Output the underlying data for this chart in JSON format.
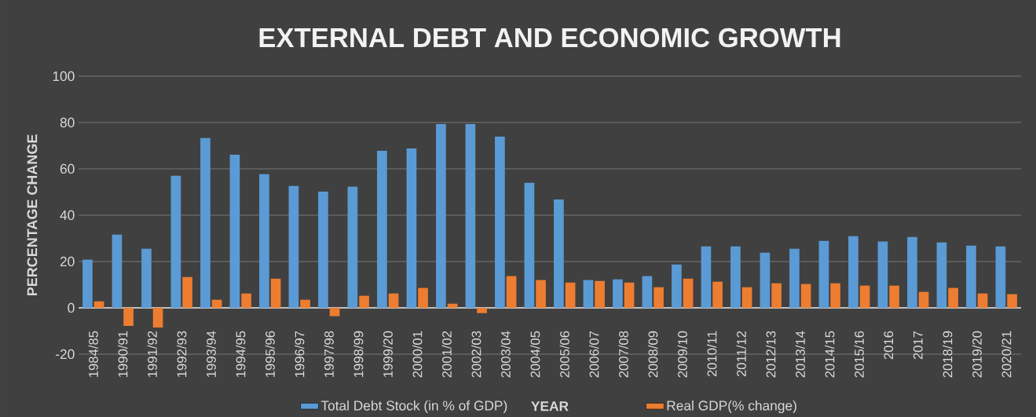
{
  "chart_data": {
    "type": "bar",
    "title": "EXTERNAL DEBT AND ECONOMIC GROWTH",
    "xlabel": "YEAR",
    "ylabel": "PERCENTAGE CHANGE",
    "categories": [
      "1984/85",
      "1990/91",
      "1991/92",
      "1992/93",
      "1993/94",
      "1994/95",
      "1995/96",
      "1996/97",
      "1997/98",
      "1998/99",
      "1999/20",
      "2000/01",
      "2001/02",
      "2002/03",
      "2003/04",
      "2004/05",
      "2005/06",
      "2006/07",
      "2007/08",
      "2008/09",
      "2009/10",
      "2010/11",
      "2011/12",
      "2012/13",
      "2013/14",
      "2014/15",
      "2015/16",
      "2016",
      "2017",
      "2018/19",
      "2019/20",
      "2020/21"
    ],
    "series": [
      {
        "name": "Total Debt Stock (in % of GDP)",
        "color": "#5b9bd5",
        "values": [
          20.8,
          31.6,
          25.5,
          57.0,
          73.3,
          66.1,
          57.7,
          52.6,
          50.2,
          52.3,
          67.8,
          68.8,
          79.3,
          79.3,
          73.9,
          54.0,
          46.8,
          12.0,
          12.3,
          13.7,
          18.7,
          26.5,
          26.5,
          23.8,
          25.5,
          28.9,
          30.9,
          28.6,
          30.6,
          28.2,
          26.9,
          26.5
        ]
      },
      {
        "name": "Real GDP(% change)",
        "color": "#ed7d31",
        "values": [
          2.8,
          -7.8,
          -8.5,
          13.3,
          3.5,
          6.2,
          12.6,
          3.5,
          -3.6,
          5.2,
          6.2,
          8.6,
          1.8,
          -2.3,
          13.7,
          12.0,
          10.9,
          11.6,
          10.9,
          8.9,
          12.6,
          11.3,
          8.9,
          10.6,
          10.3,
          10.6,
          9.6,
          9.6,
          6.9,
          8.6,
          6.2,
          5.9
        ]
      }
    ],
    "ylim": [
      -20,
      100
    ],
    "yticks": [
      -20,
      0,
      20,
      40,
      60,
      80,
      100
    ],
    "grid": "y",
    "legend": "bottom"
  }
}
